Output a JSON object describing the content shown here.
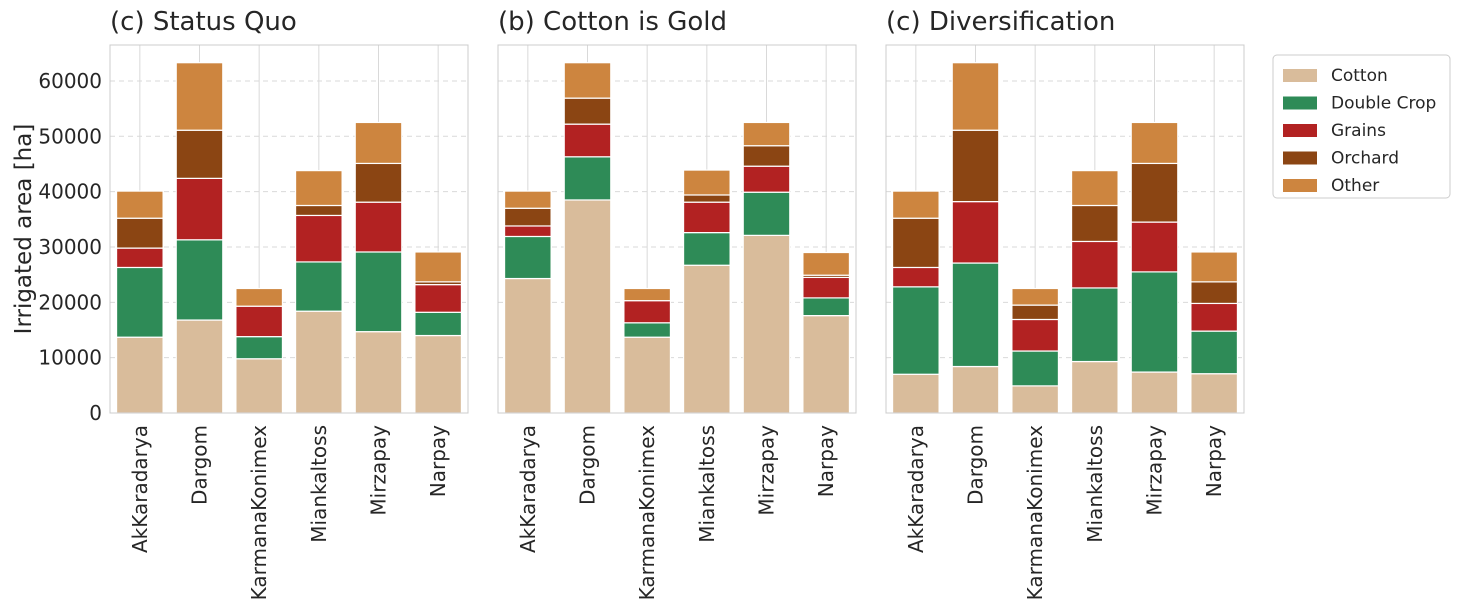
{
  "chart_data": {
    "type": "bar",
    "stacked": true,
    "ylabel": "Irrigated area [ha]",
    "ylim": [
      0,
      66500
    ],
    "yticks": [
      0,
      10000,
      20000,
      30000,
      40000,
      50000,
      60000
    ],
    "grid": true,
    "legend_position": "outside-right-top",
    "categories": [
      "AkKaradarya",
      "Dargom",
      "KarmanaKonimex",
      "Miankaltoss",
      "Mirzapay",
      "Narpay"
    ],
    "series_names": [
      "Cotton",
      "Double Crop",
      "Grains",
      "Orchard",
      "Other"
    ],
    "colors": {
      "Cotton": "#d9bc9b",
      "Double Crop": "#2e8b57",
      "Grains": "#b22222",
      "Orchard": "#8b4513",
      "Other": "#cd853f"
    },
    "panels": [
      {
        "title": "(c) Status Quo",
        "series": [
          {
            "name": "Cotton",
            "values": [
              13700,
              16800,
              9800,
              18400,
              14700,
              14000
            ]
          },
          {
            "name": "Double Crop",
            "values": [
              12600,
              14500,
              4000,
              8900,
              14400,
              4200
            ]
          },
          {
            "name": "Grains",
            "values": [
              3500,
              11100,
              5500,
              8400,
              9000,
              5000
            ]
          },
          {
            "name": "Orchard",
            "values": [
              5400,
              8700,
              0,
              1800,
              7000,
              500
            ]
          },
          {
            "name": "Other",
            "values": [
              4900,
              12200,
              3200,
              6300,
              7400,
              5400
            ]
          }
        ]
      },
      {
        "title": "(b) Cotton is Gold",
        "series": [
          {
            "name": "Cotton",
            "values": [
              24300,
              38500,
              13700,
              26700,
              32100,
              17600
            ]
          },
          {
            "name": "Double Crop",
            "values": [
              7600,
              7800,
              2600,
              5900,
              7800,
              3200
            ]
          },
          {
            "name": "Grains",
            "values": [
              1900,
              5900,
              4000,
              5500,
              4700,
              3700
            ]
          },
          {
            "name": "Orchard",
            "values": [
              3200,
              4700,
              0,
              1300,
              3700,
              400
            ]
          },
          {
            "name": "Other",
            "values": [
              3100,
              6400,
              2200,
              4500,
              4200,
              4100
            ]
          }
        ]
      },
      {
        "title": "(c) Diversification",
        "series": [
          {
            "name": "Cotton",
            "values": [
              7000,
              8400,
              4900,
              9300,
              7400,
              7100
            ]
          },
          {
            "name": "Double Crop",
            "values": [
              15800,
              18700,
              6300,
              13300,
              18100,
              7700
            ]
          },
          {
            "name": "Grains",
            "values": [
              3500,
              11100,
              5700,
              8400,
              9000,
              5000
            ]
          },
          {
            "name": "Orchard",
            "values": [
              8900,
              12900,
              2600,
              6500,
              10600,
              3900
            ]
          },
          {
            "name": "Other",
            "values": [
              4900,
              12200,
              3000,
              6300,
              7400,
              5400
            ]
          }
        ]
      }
    ]
  }
}
